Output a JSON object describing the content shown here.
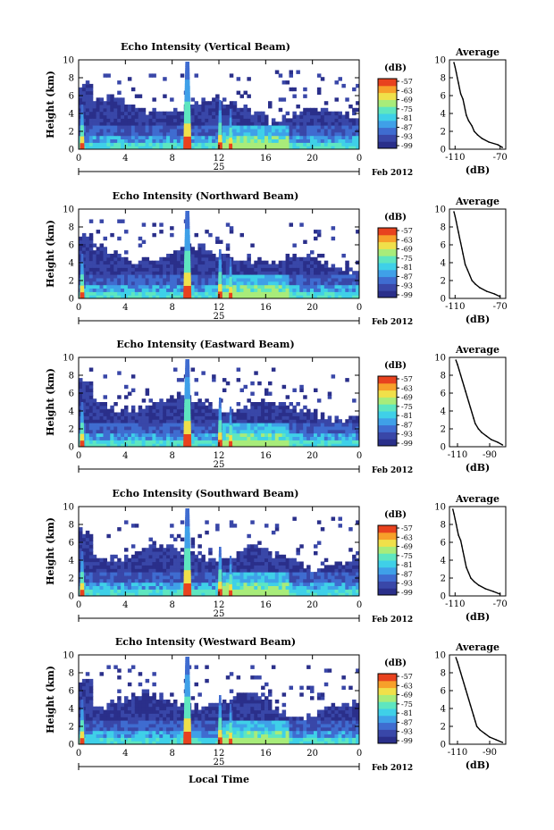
{
  "colors": {
    "scale": [
      "#2a2f8a",
      "#3947a8",
      "#3f6cd0",
      "#3fa0e8",
      "#3fd0e8",
      "#5ee6c0",
      "#a8ec7a",
      "#f0e04a",
      "#f7a02a",
      "#e8421e"
    ],
    "axis": "#000000"
  },
  "chart_data": [
    {
      "type": "heatmap",
      "title": "Echo Intensity (Vertical Beam)",
      "ylabel": "Height (km)",
      "x_ticks": [
        "0",
        "4",
        "8",
        "12",
        "16",
        "20",
        "0"
      ],
      "y_ticks": [
        "0",
        "2",
        "4",
        "6",
        "8",
        "10"
      ],
      "xlim": [
        0,
        24
      ],
      "ylim": [
        0,
        10
      ],
      "date_day": "25",
      "date_label": "Feb 2012",
      "colorbar": {
        "unit": "(dB)",
        "ticks": [
          "-57",
          "-63",
          "-69",
          "-75",
          "-81",
          "-87",
          "-93",
          "-99"
        ]
      },
      "profile": {
        "title": "Average",
        "xlabel": "(dB)",
        "x_ticks": [
          "-110",
          "-70"
        ],
        "y_ticks": [
          "0",
          "2",
          "4",
          "6",
          "8",
          "10"
        ],
        "xlim": [
          -115,
          -65
        ],
        "ylim": [
          0,
          10
        ],
        "points": [
          [
            -68,
            0.2
          ],
          [
            -72,
            0.5
          ],
          [
            -80,
            0.8
          ],
          [
            -86,
            1.2
          ],
          [
            -90,
            1.6
          ],
          [
            -93,
            2.0
          ],
          [
            -95,
            2.6
          ],
          [
            -98,
            3.2
          ],
          [
            -100,
            3.8
          ],
          [
            -101,
            4.4
          ],
          [
            -102,
            5.0
          ],
          [
            -103,
            5.6
          ],
          [
            -105,
            6.2
          ],
          [
            -106,
            6.8
          ],
          [
            -107,
            7.4
          ],
          [
            -108,
            8.0
          ],
          [
            -109,
            8.6
          ],
          [
            -110,
            9.2
          ],
          [
            -111,
            9.7
          ]
        ]
      }
    },
    {
      "type": "heatmap",
      "title": "Echo Intensity (Northward Beam)",
      "ylabel": "Height (km)",
      "x_ticks": [
        "0",
        "4",
        "8",
        "12",
        "16",
        "20",
        "0"
      ],
      "y_ticks": [
        "0",
        "2",
        "4",
        "6",
        "8",
        "10"
      ],
      "xlim": [
        0,
        24
      ],
      "ylim": [
        0,
        10
      ],
      "date_day": "25",
      "date_label": "Feb 2012",
      "colorbar": {
        "unit": "(dB)",
        "ticks": [
          "-57",
          "-63",
          "-69",
          "-75",
          "-81",
          "-87",
          "-93",
          "-99"
        ]
      },
      "profile": {
        "title": "Average",
        "xlabel": "(dB)",
        "x_ticks": [
          "-110",
          "-70"
        ],
        "y_ticks": [
          "0",
          "2",
          "4",
          "6",
          "8",
          "10"
        ],
        "xlim": [
          -115,
          -65
        ],
        "ylim": [
          0,
          10
        ],
        "points": [
          [
            -70,
            0.2
          ],
          [
            -75,
            0.5
          ],
          [
            -82,
            0.8
          ],
          [
            -88,
            1.2
          ],
          [
            -92,
            1.6
          ],
          [
            -95,
            2.0
          ],
          [
            -97,
            2.6
          ],
          [
            -99,
            3.2
          ],
          [
            -101,
            3.8
          ],
          [
            -102,
            4.4
          ],
          [
            -103,
            5.0
          ],
          [
            -104,
            5.6
          ],
          [
            -105,
            6.2
          ],
          [
            -106,
            6.8
          ],
          [
            -107,
            7.4
          ],
          [
            -108,
            8.0
          ],
          [
            -109,
            8.6
          ],
          [
            -110,
            9.2
          ],
          [
            -111,
            9.7
          ]
        ]
      }
    },
    {
      "type": "heatmap",
      "title": "Echo Intensity (Eastward Beam)",
      "ylabel": "Height (km)",
      "x_ticks": [
        "0",
        "4",
        "8",
        "12",
        "16",
        "20",
        "0"
      ],
      "y_ticks": [
        "0",
        "2",
        "4",
        "6",
        "8",
        "10"
      ],
      "xlim": [
        0,
        24
      ],
      "ylim": [
        0,
        10
      ],
      "date_day": "25",
      "date_label": "Feb 2012",
      "colorbar": {
        "unit": "(dB)",
        "ticks": [
          "-57",
          "-63",
          "-69",
          "-75",
          "-81",
          "-87",
          "-93",
          "-99"
        ]
      },
      "profile": {
        "title": "Average",
        "xlabel": "(dB)",
        "x_ticks": [
          "-110",
          "-90"
        ],
        "y_ticks": [
          "0",
          "2",
          "4",
          "6",
          "8",
          "10"
        ],
        "xlim": [
          -115,
          -80
        ],
        "ylim": [
          0,
          10
        ],
        "points": [
          [
            -82,
            0.2
          ],
          [
            -85,
            0.5
          ],
          [
            -89,
            0.8
          ],
          [
            -92,
            1.2
          ],
          [
            -95,
            1.6
          ],
          [
            -97,
            2.0
          ],
          [
            -99,
            2.6
          ],
          [
            -100,
            3.2
          ],
          [
            -101,
            3.8
          ],
          [
            -102,
            4.4
          ],
          [
            -103,
            5.0
          ],
          [
            -104,
            5.6
          ],
          [
            -105,
            6.2
          ],
          [
            -106,
            6.8
          ],
          [
            -107,
            7.4
          ],
          [
            -108,
            8.0
          ],
          [
            -109,
            8.6
          ],
          [
            -110,
            9.2
          ],
          [
            -111,
            9.7
          ]
        ]
      }
    },
    {
      "type": "heatmap",
      "title": "Echo Intensity (Southward Beam)",
      "ylabel": "Height (km)",
      "x_ticks": [
        "0",
        "4",
        "8",
        "12",
        "16",
        "20",
        "0"
      ],
      "y_ticks": [
        "0",
        "2",
        "4",
        "6",
        "8",
        "10"
      ],
      "xlim": [
        0,
        24
      ],
      "ylim": [
        0,
        10
      ],
      "date_day": "25",
      "date_label": "Feb 2012",
      "colorbar": {
        "unit": "(dB)",
        "ticks": [
          "-57",
          "-63",
          "-69",
          "-75",
          "-81",
          "-87",
          "-93",
          "-99"
        ]
      },
      "profile": {
        "title": "Average",
        "xlabel": "(dB)",
        "x_ticks": [
          "-110",
          "-70"
        ],
        "y_ticks": [
          "0",
          "2",
          "4",
          "6",
          "8",
          "10"
        ],
        "xlim": [
          -115,
          -65
        ],
        "ylim": [
          0,
          10
        ],
        "points": [
          [
            -70,
            0.2
          ],
          [
            -76,
            0.5
          ],
          [
            -83,
            0.8
          ],
          [
            -89,
            1.2
          ],
          [
            -93,
            1.6
          ],
          [
            -96,
            2.0
          ],
          [
            -98,
            2.6
          ],
          [
            -100,
            3.2
          ],
          [
            -101,
            3.8
          ],
          [
            -102,
            4.4
          ],
          [
            -103,
            5.0
          ],
          [
            -104,
            5.6
          ],
          [
            -105,
            6.2
          ],
          [
            -107,
            6.8
          ],
          [
            -108,
            7.4
          ],
          [
            -109,
            8.0
          ],
          [
            -110,
            8.6
          ],
          [
            -111,
            9.2
          ],
          [
            -112,
            9.7
          ]
        ]
      }
    },
    {
      "type": "heatmap",
      "title": "Echo Intensity (Westward Beam)",
      "ylabel": "Height (km)",
      "x_ticks": [
        "0",
        "4",
        "8",
        "12",
        "16",
        "20",
        "0"
      ],
      "y_ticks": [
        "0",
        "2",
        "4",
        "6",
        "8",
        "10"
      ],
      "xlim": [
        0,
        24
      ],
      "ylim": [
        0,
        10
      ],
      "date_day": "25",
      "date_label": "Feb 2012",
      "x_title": "Local Time",
      "colorbar": {
        "unit": "(dB)",
        "ticks": [
          "-57",
          "-63",
          "-69",
          "-75",
          "-81",
          "-87",
          "-93",
          "-99"
        ]
      },
      "profile": {
        "title": "Average",
        "xlabel": "(dB)",
        "x_ticks": [
          "-110",
          "-90"
        ],
        "y_ticks": [
          "0",
          "2",
          "4",
          "6",
          "8",
          "10"
        ],
        "xlim": [
          -115,
          -80
        ],
        "ylim": [
          0,
          10
        ],
        "points": [
          [
            -82,
            0.2
          ],
          [
            -86,
            0.5
          ],
          [
            -90,
            0.8
          ],
          [
            -93,
            1.2
          ],
          [
            -96,
            1.6
          ],
          [
            -98,
            2.0
          ],
          [
            -99,
            2.6
          ],
          [
            -100,
            3.2
          ],
          [
            -101,
            3.8
          ],
          [
            -102,
            4.4
          ],
          [
            -103,
            5.0
          ],
          [
            -104,
            5.6
          ],
          [
            -105,
            6.2
          ],
          [
            -106,
            6.8
          ],
          [
            -107,
            7.4
          ],
          [
            -108,
            8.0
          ],
          [
            -109,
            8.6
          ],
          [
            -110,
            9.2
          ],
          [
            -111,
            9.7
          ]
        ]
      }
    }
  ]
}
